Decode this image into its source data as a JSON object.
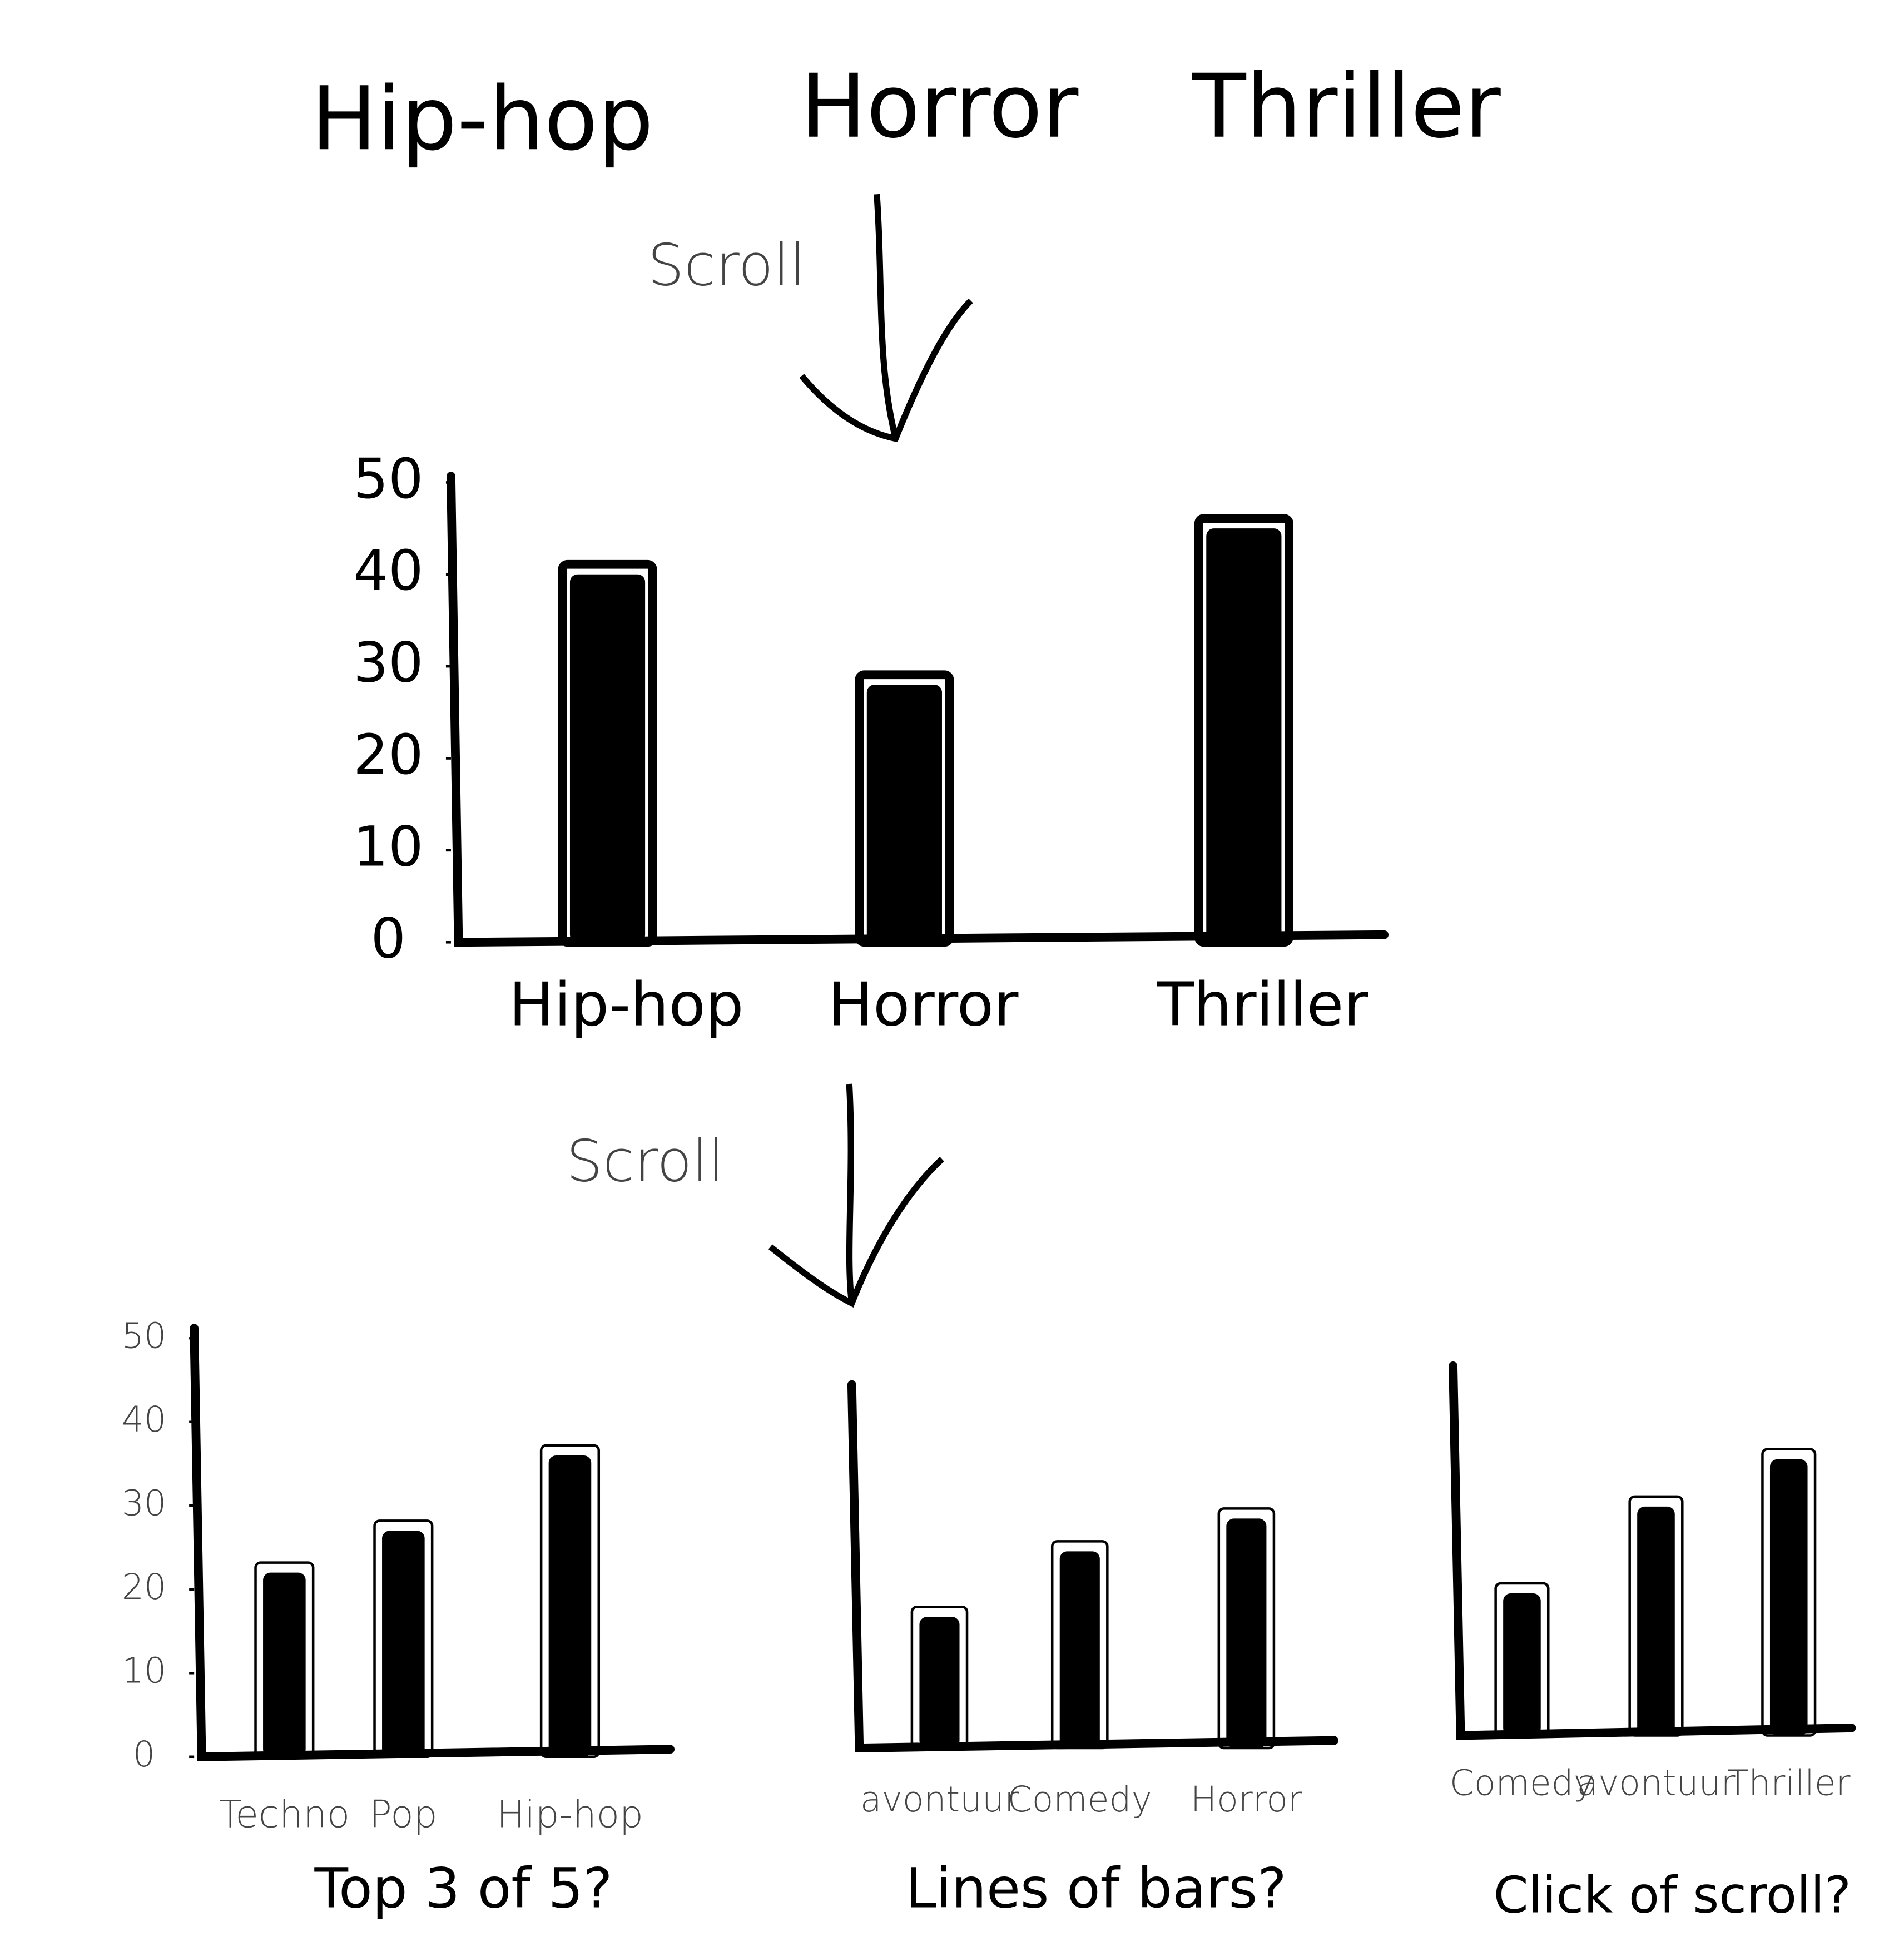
{
  "genres": [
    "Hip-hop",
    "Horror",
    "Thriller"
  ],
  "scroll_labels": [
    "Scroll",
    "Scroll"
  ],
  "chart_data": [
    {
      "type": "bar",
      "categories": [
        "Hip-hop",
        "Horror",
        "Thriller"
      ],
      "values": [
        40,
        28,
        45
      ],
      "color": "#000000",
      "ylim": [
        0,
        50
      ],
      "yticks": [
        0,
        10,
        20,
        30,
        40,
        50
      ]
    },
    {
      "type": "bar",
      "categories": [
        "Techno",
        "Pop",
        "Hip-hop"
      ],
      "values": [
        22,
        27,
        36
      ],
      "color": "#000000",
      "ylim": [
        0,
        50
      ],
      "yticks": [
        0,
        10,
        20,
        30,
        40,
        50
      ],
      "caption": "Top 3 of 5?"
    },
    {
      "type": "bar",
      "categories": [
        "avontuur",
        "Comedy",
        "Horror"
      ],
      "values": [
        16,
        24,
        28
      ],
      "color": "#000000",
      "ylim": [
        0,
        50
      ],
      "caption": "Lines of bars?"
    },
    {
      "type": "bar",
      "categories": [
        "Comedy",
        "avontuur",
        "Thriller"
      ],
      "values": [
        18,
        29,
        35
      ],
      "color": "#000000",
      "ylim": [
        0,
        50
      ],
      "caption": "Click of scroll?"
    }
  ]
}
